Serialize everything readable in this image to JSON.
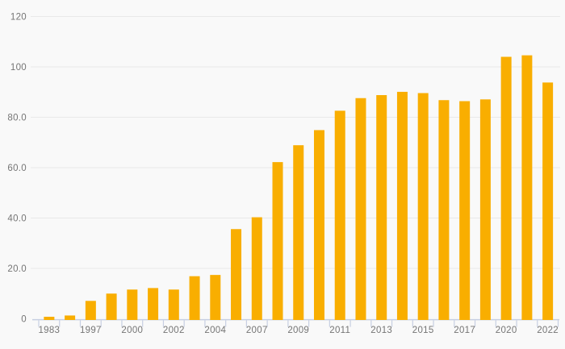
{
  "chart_data": {
    "type": "bar",
    "title": "",
    "xlabel": "",
    "ylabel": "",
    "categories": [
      "1983",
      "",
      "1997",
      "",
      "2000",
      "",
      "2002",
      "",
      "2004",
      "",
      "2007",
      "",
      "2009",
      "",
      "2011",
      "",
      "2013",
      "",
      "2015",
      "",
      "2017",
      "",
      "2020",
      "",
      "2022"
    ],
    "values": [
      0.8,
      1.3,
      7.1,
      10.0,
      11.6,
      12.2,
      11.6,
      16.9,
      17.4,
      35.6,
      40.3,
      62.2,
      68.9,
      74.9,
      82.6,
      87.6,
      88.8,
      90.1,
      89.6,
      86.8,
      86.4,
      87.1,
      104.0,
      104.6,
      93.8
    ],
    "ylim": [
      0,
      120
    ],
    "y_ticks": [
      {
        "value": 0,
        "label": "0"
      },
      {
        "value": 20,
        "label": "20.0"
      },
      {
        "value": 40,
        "label": "40.0"
      },
      {
        "value": 60,
        "label": "60.0"
      },
      {
        "value": 80,
        "label": "80.0"
      },
      {
        "value": 100,
        "label": "100"
      },
      {
        "value": 120,
        "label": "120"
      }
    ],
    "grid": true,
    "legend": false,
    "colors": {
      "bar": "#F9AE00",
      "background": "#F9F9F9",
      "gridline": "#E9E9E9",
      "axis_line": "#C7CFE2",
      "tick_label": "#757575"
    }
  }
}
